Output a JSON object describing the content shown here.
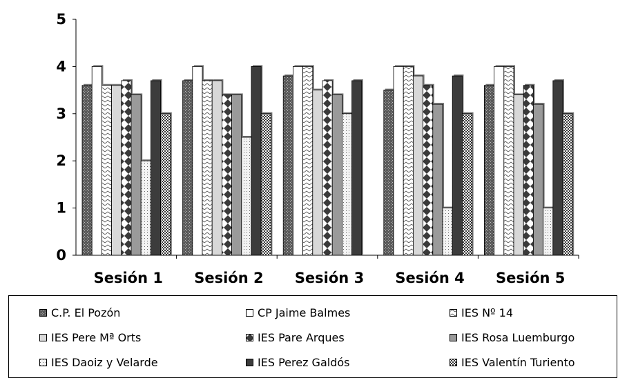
{
  "chart_data": {
    "type": "bar",
    "categories": [
      "Sesión 1",
      "Sesión 2",
      "Sesión 3",
      "Sesión 4",
      "Sesión 5"
    ],
    "ylim": [
      0,
      5
    ],
    "yticks": [
      "0",
      "1",
      "2",
      "3",
      "4",
      "5"
    ],
    "grid": false,
    "legend_position": "bottom",
    "series": [
      {
        "name": "C.P. El Pozón",
        "values": [
          3.6,
          3.7,
          3.8,
          3.5,
          3.6
        ]
      },
      {
        "name": "CP Jaime Balmes",
        "values": [
          4.0,
          4.0,
          4.0,
          4.0,
          4.0
        ]
      },
      {
        "name": "IES Nº 14",
        "values": [
          3.6,
          3.7,
          4.0,
          4.0,
          4.0
        ]
      },
      {
        "name": "IES Pere Mª Orts",
        "values": [
          3.6,
          3.7,
          3.5,
          3.8,
          3.4
        ]
      },
      {
        "name": "IES Pare Arques",
        "values": [
          3.7,
          3.4,
          3.7,
          3.6,
          3.6
        ]
      },
      {
        "name": "IES Rosa Luemburgo",
        "values": [
          3.4,
          3.4,
          3.4,
          3.2,
          3.2
        ]
      },
      {
        "name": "IES Daoiz y Velarde",
        "values": [
          2.0,
          2.5,
          3.0,
          1.0,
          1.0
        ]
      },
      {
        "name": "IES Perez Galdós",
        "values": [
          3.7,
          4.0,
          3.7,
          3.8,
          3.7
        ]
      },
      {
        "name": "IES Valentín Turiento",
        "values": [
          3.0,
          3.0,
          null,
          3.0,
          3.0
        ]
      }
    ]
  }
}
